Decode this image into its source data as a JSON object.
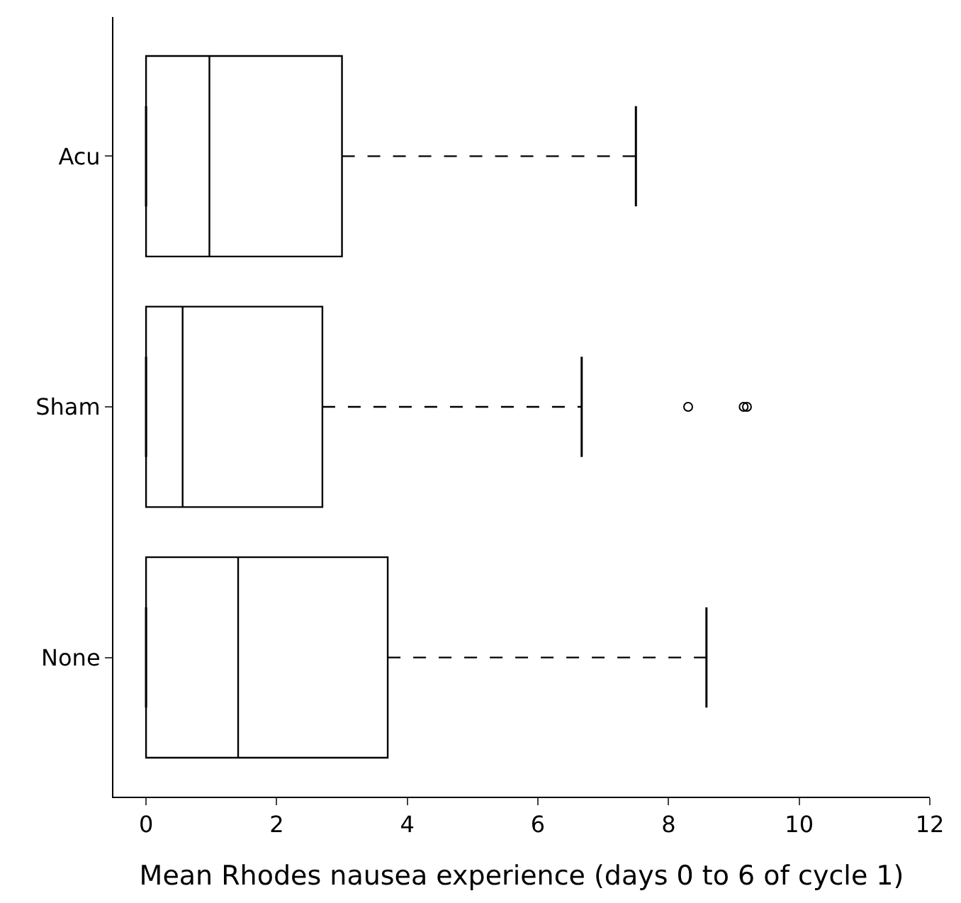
{
  "chart_data": {
    "type": "box",
    "orientation": "horizontal",
    "xlabel": "Mean Rhodes nausea experience (days 0 to 6 of cycle 1)",
    "categories": [
      "Acu",
      "Sham",
      "None"
    ],
    "color": "#000000",
    "boxes": [
      {
        "low": 0,
        "q1": 0,
        "median": 0.97,
        "q3": 3.0,
        "high": 7.5
      },
      {
        "low": 0,
        "q1": 0,
        "median": 0.56,
        "q3": 2.7,
        "high": 6.67,
        "outliers": [
          8.3,
          9.15,
          9.2
        ]
      },
      {
        "low": 0,
        "q1": 0,
        "median": 1.41,
        "q3": 3.7,
        "high": 8.58
      }
    ],
    "xlim": [
      -0.5,
      12
    ],
    "xticks": [
      0,
      2,
      4,
      6,
      8,
      10,
      12
    ]
  }
}
